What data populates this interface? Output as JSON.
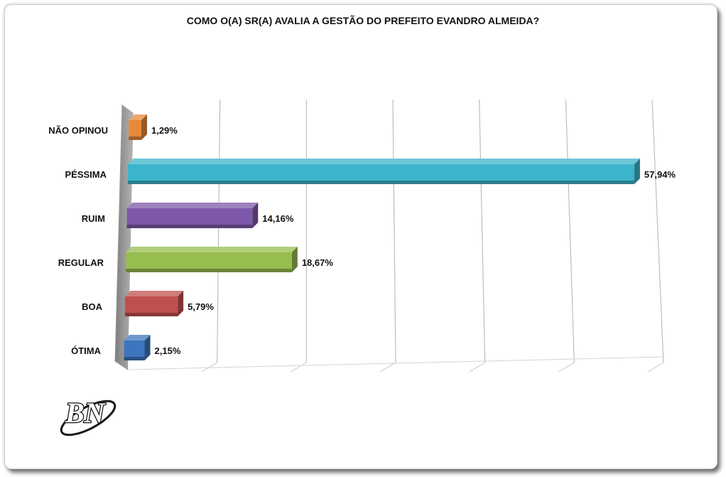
{
  "chart_data": {
    "type": "bar",
    "orientation": "horizontal",
    "style": "3d",
    "title": "COMO O(A) SR(A) AVALIA A GESTÃO DO PREFEITO EVANDRO ALMEIDA?",
    "categories": [
      "NÃO OPINOU",
      "PÉSSIMA",
      "RUIM",
      "REGULAR",
      "BOA",
      "ÓTIMA"
    ],
    "values": [
      1.29,
      57.94,
      14.16,
      18.67,
      5.79,
      2.15
    ],
    "value_labels": [
      "1,29%",
      "57,94%",
      "14,16%",
      "18,67%",
      "5,79%",
      "2,15%"
    ],
    "colors": [
      "#E8893A",
      "#3CB4CC",
      "#7E58A8",
      "#97BD4E",
      "#C0504D",
      "#3D75BE"
    ],
    "xlim": [
      0,
      60
    ],
    "grid": true,
    "legend": "none"
  },
  "logo": {
    "text": "BN"
  }
}
